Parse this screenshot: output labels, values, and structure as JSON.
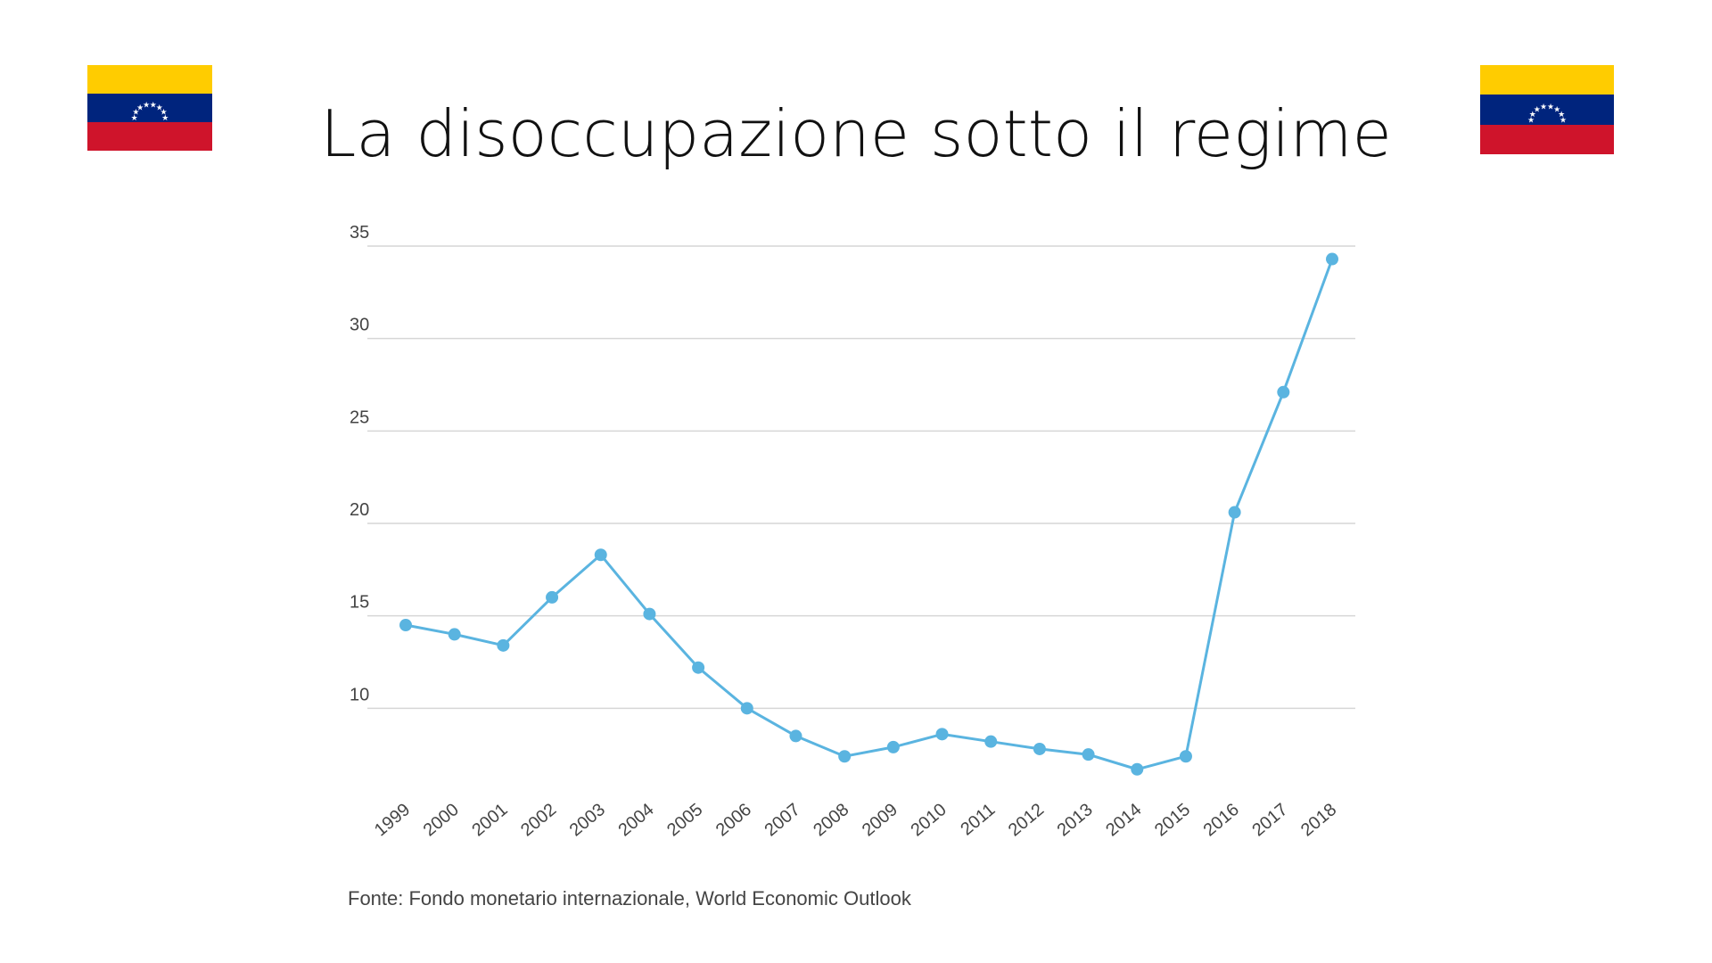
{
  "slide": {
    "title": "La disoccupazione sotto il regime",
    "source": "Fonte: Fondo monetario internazionale, World Economic Outlook"
  },
  "flags": {
    "icon": "venezuela-flag-icon",
    "colors": {
      "yellow": "#ffcc00",
      "blue": "#00247d",
      "red": "#cf142b",
      "stars": "#ffffff"
    }
  },
  "colors": {
    "series": "#5ab4e0",
    "grid": "#d6d6d6",
    "text": "#444444"
  },
  "chart_data": {
    "type": "line",
    "categories": [
      "1999",
      "2000",
      "2001",
      "2002",
      "2003",
      "2004",
      "2005",
      "2006",
      "2007",
      "2008",
      "2009",
      "2010",
      "2011",
      "2012",
      "2013",
      "2014",
      "2015",
      "2016",
      "2017",
      "2018"
    ],
    "values": [
      14.5,
      14.0,
      13.4,
      16.0,
      18.3,
      15.1,
      12.2,
      10.0,
      8.5,
      7.4,
      7.9,
      8.6,
      8.2,
      7.8,
      7.5,
      6.7,
      7.4,
      20.6,
      27.1,
      34.3
    ],
    "yticks": [
      10,
      15,
      20,
      25,
      30,
      35
    ],
    "ylim": [
      5,
      35
    ],
    "grid": true,
    "legend": "none",
    "title": "",
    "xlabel": "",
    "ylabel": ""
  }
}
